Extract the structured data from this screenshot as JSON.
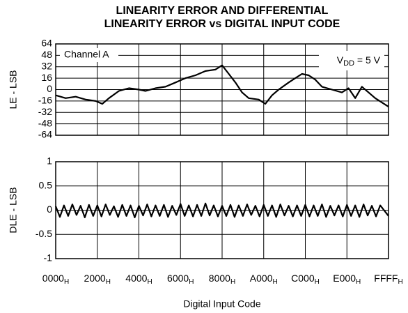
{
  "chart_data": [
    {
      "type": "line",
      "title": [
        "LINEARITY ERROR AND DIFFERENTIAL",
        "LINEARITY ERROR vs DIGITAL INPUT CODE"
      ],
      "ylabel": "LE - LSB",
      "annotations": [
        "Channel A",
        "VDD = 5 V"
      ],
      "xlim": [
        0,
        65535
      ],
      "xticks": [
        0,
        8192,
        16384,
        24576,
        32768,
        40960,
        49152,
        57344,
        65535
      ],
      "ylim": [
        -64,
        64
      ],
      "yticks": [
        64,
        48,
        32,
        16,
        0,
        -16,
        -32,
        -48,
        -64
      ],
      "grid": true,
      "series": [
        {
          "color": "#000000",
          "x": [
            0,
            1966,
            3932,
            5898,
            7864,
            9175,
            10486,
            12452,
            14418,
            16384,
            17694,
            19661,
            21627,
            23593,
            25559,
            27525,
            29491,
            31457,
            32768,
            34078,
            35389,
            36700,
            38010,
            39976,
            41287,
            42598,
            43908,
            45875,
            47185,
            48496,
            49807,
            51117,
            52428,
            54394,
            56360,
            57671,
            58981,
            60292,
            61603,
            62913,
            64224,
            65535
          ],
          "values": [
            -8,
            -12,
            -10,
            -14,
            -16,
            -20,
            -12,
            -2,
            2,
            0,
            -2,
            2,
            4,
            10,
            16,
            20,
            26,
            28,
            34,
            22,
            10,
            -4,
            -12,
            -14,
            -20,
            -8,
            0,
            10,
            16,
            22,
            20,
            14,
            4,
            0,
            -4,
            2,
            -12,
            4,
            -4,
            -12,
            -18,
            -24
          ]
        }
      ]
    },
    {
      "type": "line",
      "ylabel": "DLE - LSB",
      "xlabel": "Digital Input Code",
      "xlim": [
        0,
        65535
      ],
      "xticks": [
        {
          "value": 0,
          "label": "0000H"
        },
        {
          "value": 8192,
          "label": "2000H"
        },
        {
          "value": 16384,
          "label": "4000H"
        },
        {
          "value": 24576,
          "label": "6000H"
        },
        {
          "value": 32768,
          "label": "8000H"
        },
        {
          "value": 40960,
          "label": "A000H"
        },
        {
          "value": 49152,
          "label": "C000H"
        },
        {
          "value": 57344,
          "label": "E000H"
        },
        {
          "value": 65535,
          "label": "FFFFH"
        }
      ],
      "ylim": [
        -1,
        1
      ],
      "yticks": [
        1,
        0.5,
        0,
        -0.5,
        -1
      ],
      "grid": true,
      "series": [
        {
          "color": "#000000",
          "x": [
            0,
            819,
            1638,
            2457,
            3276,
            4096,
            4915,
            5734,
            6553,
            7372,
            8192,
            9011,
            9830,
            10649,
            11468,
            12288,
            13107,
            13926,
            14745,
            15564,
            16384,
            17203,
            18022,
            18841,
            19660,
            20480,
            21299,
            22118,
            22937,
            23756,
            24576,
            25395,
            26214,
            27033,
            27852,
            28672,
            29491,
            30310,
            31129,
            31948,
            32768,
            33587,
            34406,
            35225,
            36044,
            36864,
            37683,
            38502,
            39321,
            40140,
            40960,
            41779,
            42598,
            43417,
            44236,
            45056,
            45875,
            46694,
            47513,
            48332,
            49152,
            49971,
            50790,
            51609,
            52428,
            53248,
            54067,
            54886,
            55705,
            56524,
            57344,
            58163,
            58982,
            59801,
            60620,
            61440,
            62259,
            63078,
            63897,
            65535
          ],
          "values": [
            0.08,
            -0.14,
            0.1,
            -0.12,
            0.12,
            -0.1,
            0.09,
            -0.15,
            0.11,
            -0.12,
            0.1,
            -0.13,
            0.12,
            -0.1,
            0.08,
            -0.14,
            0.11,
            -0.12,
            0.1,
            -0.15,
            0.09,
            -0.11,
            0.12,
            -0.13,
            0.1,
            -0.12,
            0.11,
            -0.14,
            0.09,
            -0.1,
            0.13,
            -0.12,
            0.1,
            -0.13,
            0.11,
            -0.12,
            0.14,
            -0.11,
            0.1,
            -0.13,
            0.09,
            -0.12,
            0.11,
            -0.14,
            0.1,
            -0.12,
            0.12,
            -0.1,
            0.09,
            -0.13,
            0.11,
            -0.12,
            0.1,
            -0.14,
            0.12,
            -0.11,
            0.09,
            -0.13,
            0.1,
            -0.12,
            0.11,
            -0.13,
            0.1,
            -0.12,
            0.12,
            -0.14,
            0.09,
            -0.11,
            0.1,
            -0.13,
            0.11,
            -0.12,
            0.1,
            -0.14,
            0.12,
            -0.11,
            0.09,
            -0.13,
            0.1,
            -0.12
          ]
        }
      ]
    }
  ]
}
